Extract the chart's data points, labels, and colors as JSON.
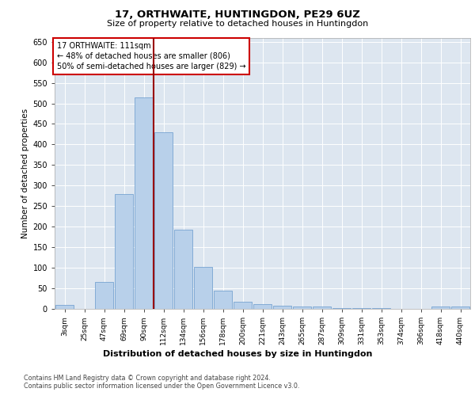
{
  "title1": "17, ORTHWAITE, HUNTINGDON, PE29 6UZ",
  "title2": "Size of property relative to detached houses in Huntingdon",
  "xlabel": "Distribution of detached houses by size in Huntingdon",
  "ylabel": "Number of detached properties",
  "categories": [
    "3sqm",
    "25sqm",
    "47sqm",
    "69sqm",
    "90sqm",
    "112sqm",
    "134sqm",
    "156sqm",
    "178sqm",
    "200sqm",
    "221sqm",
    "243sqm",
    "265sqm",
    "287sqm",
    "309sqm",
    "331sqm",
    "353sqm",
    "374sqm",
    "396sqm",
    "418sqm",
    "440sqm"
  ],
  "values": [
    10,
    0,
    65,
    280,
    515,
    430,
    192,
    103,
    45,
    17,
    12,
    7,
    5,
    5,
    2,
    1,
    1,
    0,
    0,
    5,
    5
  ],
  "bar_color": "#b8d0ea",
  "bar_edge_color": "#6699cc",
  "vline_color": "#990000",
  "annotation_text": "17 ORTHWAITE: 111sqm\n← 48% of detached houses are smaller (806)\n50% of semi-detached houses are larger (829) →",
  "annotation_box_color": "#ffffff",
  "annotation_box_edge": "#cc0000",
  "ylim": [
    0,
    660
  ],
  "yticks": [
    0,
    50,
    100,
    150,
    200,
    250,
    300,
    350,
    400,
    450,
    500,
    550,
    600,
    650
  ],
  "footer1": "Contains HM Land Registry data © Crown copyright and database right 2024.",
  "footer2": "Contains public sector information licensed under the Open Government Licence v3.0.",
  "plot_bg_color": "#dde6f0",
  "fig_bg_color": "#ffffff"
}
